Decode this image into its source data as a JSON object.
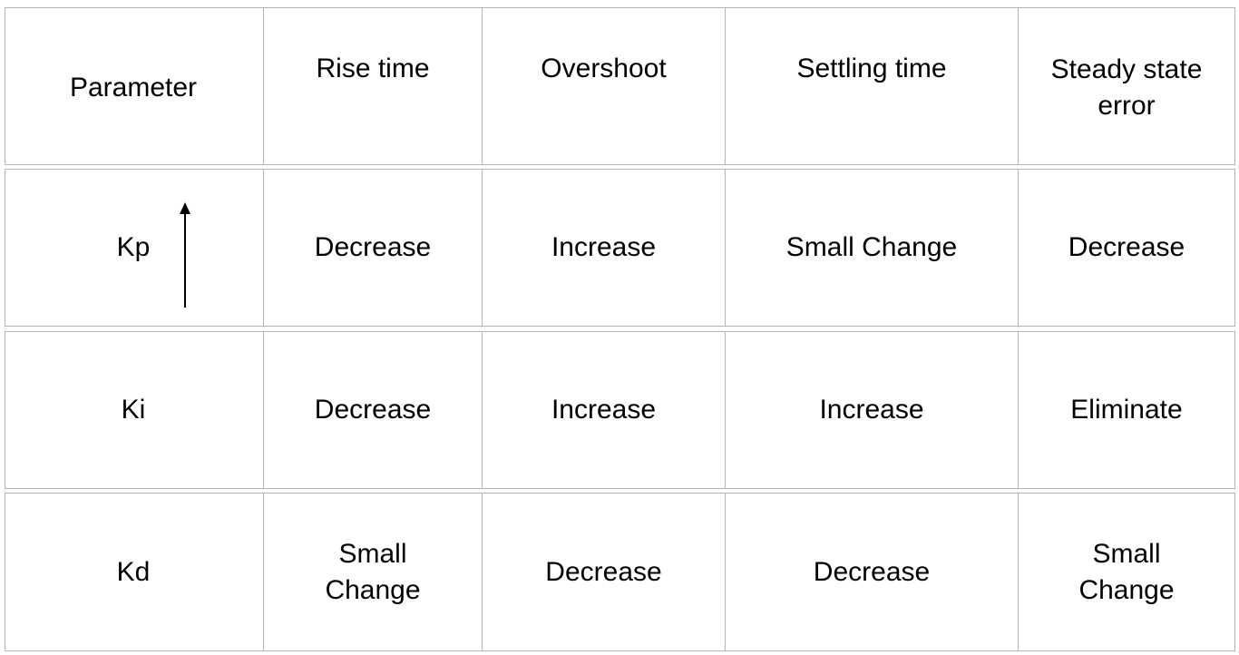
{
  "table": {
    "headers": [
      "Parameter",
      "Rise time",
      "Overshoot",
      "Settling time",
      "Steady state\nerror"
    ],
    "rows": [
      {
        "parameter": "Kp",
        "cells": [
          "Decrease",
          "Increase",
          "Small Change",
          "Decrease"
        ]
      },
      {
        "parameter": "Ki",
        "cells": [
          "Decrease",
          "Increase",
          "Increase",
          "Eliminate"
        ]
      },
      {
        "parameter": "Kd",
        "cells": [
          "Small\nChange",
          "Decrease",
          "Decrease",
          "Small\nChange"
        ]
      }
    ]
  },
  "icons": {
    "kp_indicator": "up-arrow-icon"
  }
}
